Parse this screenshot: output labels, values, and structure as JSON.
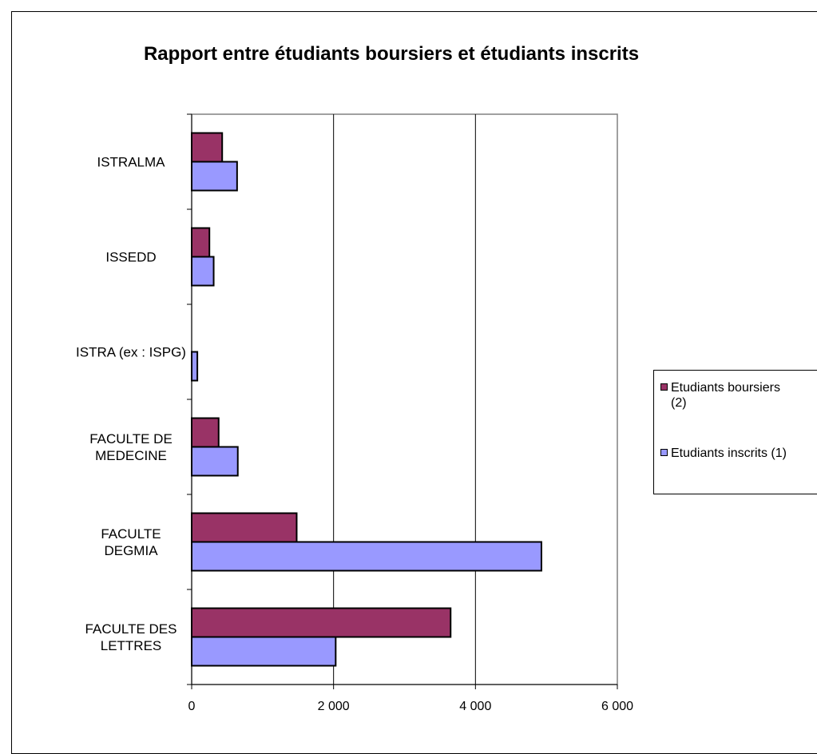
{
  "chart_data": {
    "type": "bar",
    "orientation": "horizontal",
    "title": "Rapport entre étudiants boursiers et étudiants inscrits",
    "categories": [
      "ISTRALMA",
      "ISSEDD",
      "ISTRA (ex : ISPG)",
      "FACULTE DE MEDECINE",
      "FACULTE DEGMIA",
      "FACULTE DES LETTRES"
    ],
    "category_lines": [
      [
        "ISTRALMA"
      ],
      [
        "ISSEDD"
      ],
      [
        "ISTRA (ex : ISPG)"
      ],
      [
        "FACULTE DE",
        "MEDECINE"
      ],
      [
        "FACULTE",
        "DEGMIA"
      ],
      [
        "FACULTE DES",
        "LETTRES"
      ]
    ],
    "series": [
      {
        "name": "Etudiants  boursiers (2)",
        "color": "#993366",
        "values": [
          430,
          250,
          0,
          380,
          1480,
          3650
        ]
      },
      {
        "name": "Etudiants inscrits (1)",
        "color": "#9999ff",
        "values": [
          640,
          310,
          80,
          650,
          4930,
          2030
        ]
      }
    ],
    "xlim": [
      0,
      6000
    ],
    "xticks": [
      0,
      2000,
      4000,
      6000
    ],
    "xtick_labels": [
      "0",
      "2 000",
      "4 000",
      "6 000"
    ],
    "grid": true,
    "legend_position": "right",
    "legend_lines": [
      [
        "Etudiants  boursiers",
        "(2)"
      ],
      [
        "Etudiants inscrits (1)"
      ]
    ]
  }
}
